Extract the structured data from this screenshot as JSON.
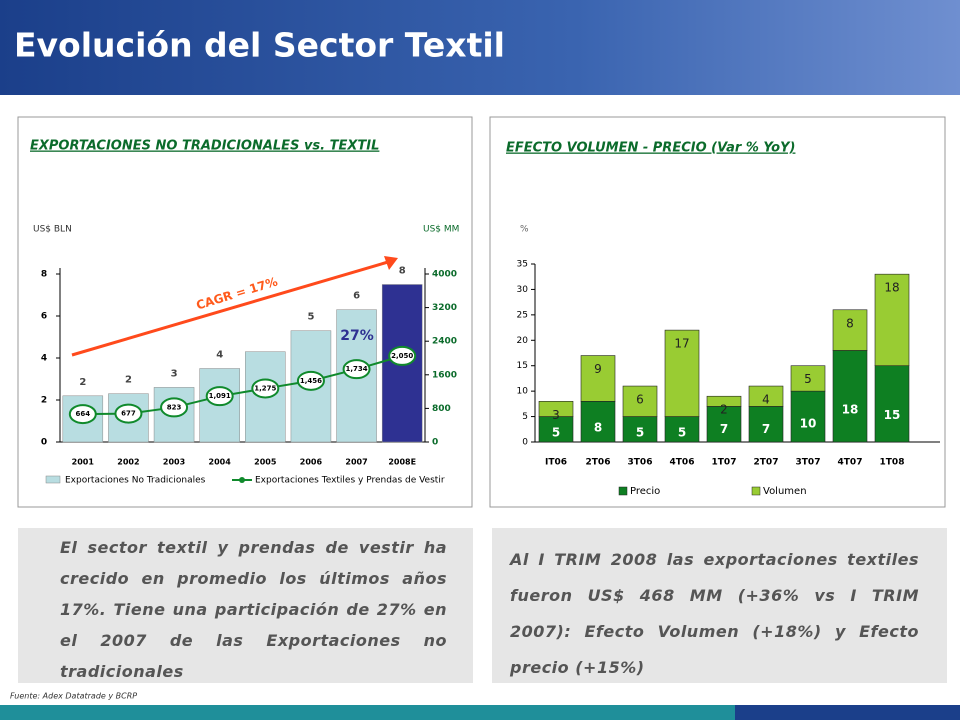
{
  "title": "Evolución del Sector Textil",
  "chart_data": [
    {
      "type": "combo",
      "title": "EXPORTACIONES NO TRADICIONALES vs. TEXTIL",
      "y_label": "US$ BLN",
      "y2_label": "US$ MM",
      "categories": [
        "2001",
        "2002",
        "2003",
        "2004",
        "2005",
        "2006",
        "2007",
        "2008E"
      ],
      "series": [
        {
          "name": "Exportaciones No Tradicionales",
          "type": "bar",
          "color": "#b8dde1",
          "colors": [
            "#b8dde1",
            "#b8dde1",
            "#b8dde1",
            "#b8dde1",
            "#b8dde1",
            "#b8dde1",
            "#b8dde1",
            "#2e3192"
          ],
          "values": [
            2.2,
            2.3,
            2.6,
            3.5,
            4.3,
            5.3,
            6.3,
            7.5
          ],
          "value_labels": [
            "2",
            "2",
            "3",
            "4",
            null,
            "5",
            "6",
            "8"
          ]
        },
        {
          "name": "Exportaciones Textiles y Prendas de Vestir",
          "type": "line",
          "axis": "y2",
          "color": "#108a2c",
          "values": [
            664,
            677,
            823,
            1091,
            1275,
            1456,
            1734,
            2050
          ],
          "value_labels": [
            "664",
            "677",
            "823",
            "1,091",
            "1,275",
            "1,456",
            "1,734",
            "2,050"
          ]
        }
      ],
      "ylim": [
        0,
        8
      ],
      "yticks": [
        0,
        2,
        4,
        6,
        8
      ],
      "y2lim": [
        0,
        4000
      ],
      "y2ticks": [
        0,
        800,
        1600,
        2400,
        3200,
        4000
      ],
      "annotations": [
        "CAGR = 17%",
        "27%"
      ]
    },
    {
      "type": "stacked_bar",
      "title": "EFECTO VOLUMEN - PRECIO (Var % YoY)",
      "y_label": "%",
      "categories": [
        "IT06",
        "2T06",
        "3T06",
        "4T06",
        "1T07",
        "2T07",
        "3T07",
        "4T07",
        "1T08"
      ],
      "series": [
        {
          "name": "Precio",
          "color": "#0e7f22",
          "values": [
            5,
            8,
            5,
            5,
            7,
            7,
            10,
            18,
            15
          ]
        },
        {
          "name": "Volumen",
          "color": "#99cc33",
          "values": [
            3,
            9,
            6,
            17,
            2,
            4,
            5,
            8,
            18
          ]
        }
      ],
      "ylim": [
        0,
        35
      ],
      "yticks": [
        0,
        5,
        10,
        15,
        20,
        25,
        30,
        35
      ]
    }
  ],
  "texts": [
    "El sector textil y prendas de vestir ha crecido en promedio los últimos años 17%. Tiene una participación de 27% en el 2007 de las Exportaciones no tradicionales",
    "Al I TRIM 2008 las exportaciones textiles fueron US$ 468 MM (+36% vs I TRIM 2007): Efecto Volumen (+18%) y Efecto precio (+15%)"
  ],
  "source": "Fuente: Adex Datatrade y BCRP"
}
